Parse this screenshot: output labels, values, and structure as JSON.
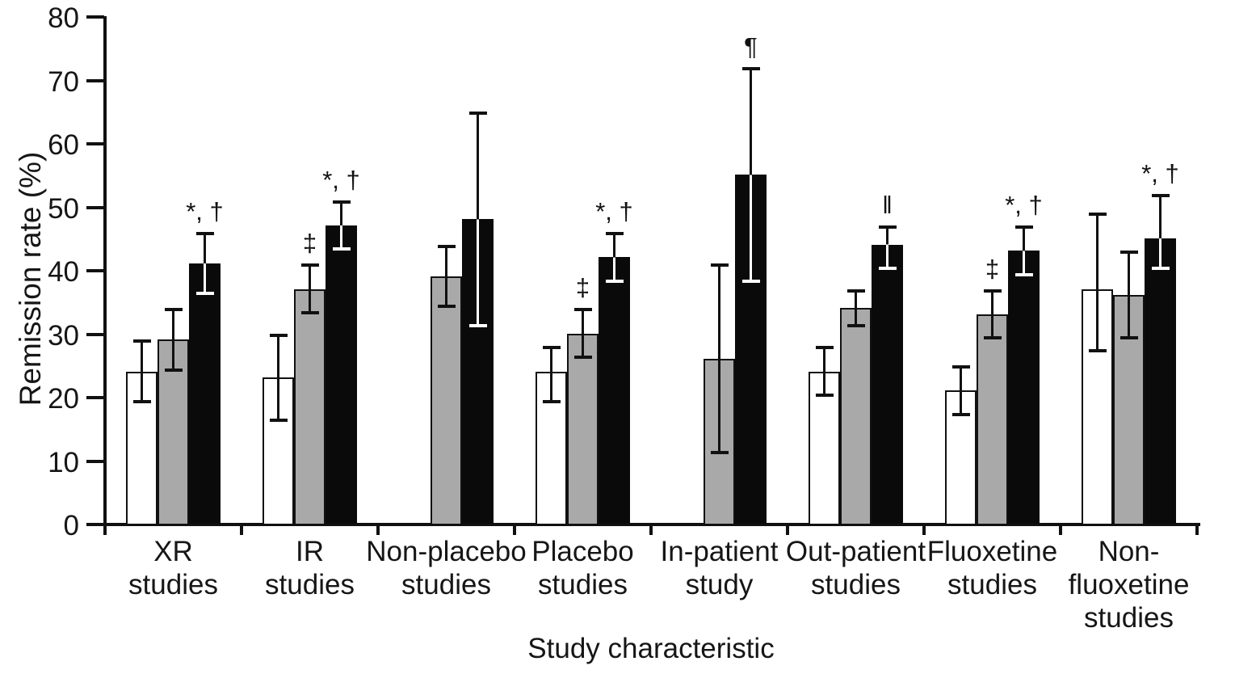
{
  "chart_data": {
    "type": "bar",
    "title": "",
    "xlabel": "Study characteristic",
    "ylabel": "Remission rate (%)",
    "ylim": [
      0,
      80
    ],
    "yticks": [
      0,
      10,
      20,
      30,
      40,
      50,
      60,
      70,
      80
    ],
    "grid": false,
    "legend": "none",
    "error_bars": true,
    "colors": {
      "white_bar": "#ffffff",
      "gray_bar": "#a9a9a9",
      "black_bar": "#0a0a0a",
      "axis": "#111111",
      "cap_on_black_bar": "#ffffff"
    },
    "series_order": [
      "white",
      "gray",
      "black"
    ],
    "groups": [
      {
        "label_line1": "XR",
        "label_line2": "studies",
        "bars": [
          {
            "series": "white",
            "value": 24,
            "err_low": 19,
            "err_high": 29,
            "symbol": ""
          },
          {
            "series": "gray",
            "value": 29,
            "err_low": 24,
            "err_high": 34,
            "symbol": ""
          },
          {
            "series": "black",
            "value": 41,
            "err_low": 36,
            "err_high": 46,
            "symbol": "*, †"
          }
        ]
      },
      {
        "label_line1": "IR",
        "label_line2": "studies",
        "bars": [
          {
            "series": "white",
            "value": 23,
            "err_low": 16,
            "err_high": 30,
            "symbol": ""
          },
          {
            "series": "gray",
            "value": 37,
            "err_low": 33,
            "err_high": 41,
            "symbol": "‡"
          },
          {
            "series": "black",
            "value": 47,
            "err_low": 43,
            "err_high": 51,
            "symbol": "*, †"
          }
        ]
      },
      {
        "label_line1": "Non-placebo",
        "label_line2": "studies",
        "bars": [
          null,
          {
            "series": "gray",
            "value": 39,
            "err_low": 34,
            "err_high": 44,
            "symbol": ""
          },
          {
            "series": "black",
            "value": 48,
            "err_low": 31,
            "err_high": 65,
            "symbol": ""
          }
        ]
      },
      {
        "label_line1": "Placebo",
        "label_line2": "studies",
        "bars": [
          {
            "series": "white",
            "value": 24,
            "err_low": 19,
            "err_high": 28,
            "symbol": ""
          },
          {
            "series": "gray",
            "value": 30,
            "err_low": 26,
            "err_high": 34,
            "symbol": "‡"
          },
          {
            "series": "black",
            "value": 42,
            "err_low": 38,
            "err_high": 46,
            "symbol": "*, †"
          }
        ]
      },
      {
        "label_line1": "In-patient",
        "label_line2": "study",
        "bars": [
          null,
          {
            "series": "gray",
            "value": 26,
            "err_low": 11,
            "err_high": 41,
            "symbol": ""
          },
          {
            "series": "black",
            "value": 55,
            "err_low": 38,
            "err_high": 72,
            "symbol": "¶"
          }
        ]
      },
      {
        "label_line1": "Out-patient",
        "label_line2": "studies",
        "bars": [
          {
            "series": "white",
            "value": 24,
            "err_low": 20,
            "err_high": 28,
            "symbol": ""
          },
          {
            "series": "gray",
            "value": 34,
            "err_low": 31,
            "err_high": 37,
            "symbol": ""
          },
          {
            "series": "black",
            "value": 44,
            "err_low": 40,
            "err_high": 47,
            "symbol": "‖"
          }
        ]
      },
      {
        "label_line1": "Fluoxetine",
        "label_line2": "studies",
        "bars": [
          {
            "series": "white",
            "value": 21,
            "err_low": 17,
            "err_high": 25,
            "symbol": ""
          },
          {
            "series": "gray",
            "value": 33,
            "err_low": 29,
            "err_high": 37,
            "symbol": "‡"
          },
          {
            "series": "black",
            "value": 43,
            "err_low": 39,
            "err_high": 47,
            "symbol": "*, †"
          }
        ]
      },
      {
        "label_line1": "Non-fluoxetine",
        "label_line2": "studies",
        "bars": [
          {
            "series": "white",
            "value": 37,
            "err_low": 27,
            "err_high": 49,
            "symbol": ""
          },
          {
            "series": "gray",
            "value": 36,
            "err_low": 29,
            "err_high": 43,
            "symbol": ""
          },
          {
            "series": "black",
            "value": 45,
            "err_low": 40,
            "err_high": 52,
            "symbol": "*, †"
          }
        ]
      }
    ]
  }
}
